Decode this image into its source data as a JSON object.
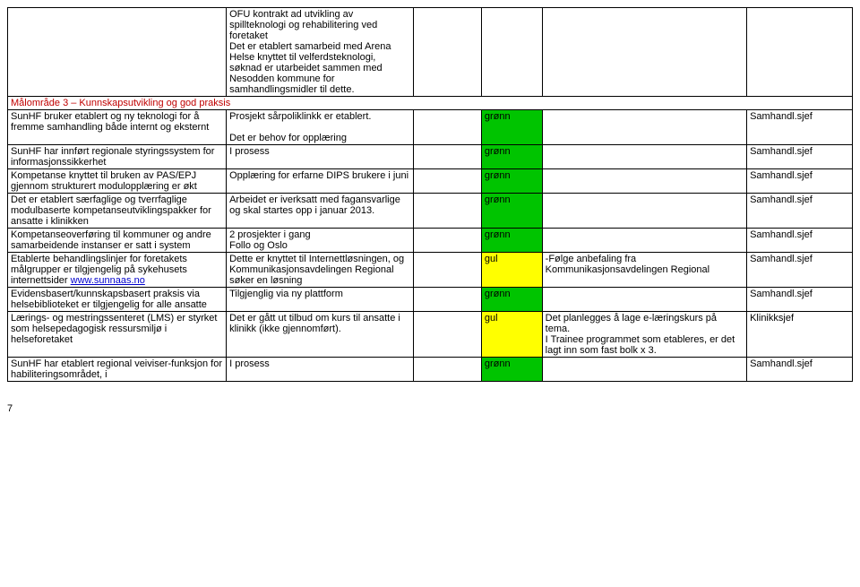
{
  "row0": {
    "colA": "",
    "colB": "OFU kontrakt ad utvikling av spillteknologi og rehabilitering ved foretaket\nDet er etablert samarbeid med Arena Helse knyttet til velferdsteknologi, søknad er utarbeidet sammen med Nesodden kommune for samhandlingsmidler til dette.",
    "colC": "",
    "colD": "",
    "colE": "",
    "colF": ""
  },
  "section_header": "Målområde 3 – Kunnskapsutvikling og god praksis",
  "rows": [
    {
      "a": "SunHF bruker etablert og ny teknologi for å fremme samhandling både internt og eksternt",
      "b": "Prosjekt sårpoliklinkk er etablert.\n\nDet er behov for opplæring",
      "c": "",
      "d_label": "grønn",
      "d_color": "gronn",
      "e": "",
      "f": "Samhandl.sjef"
    },
    {
      "a": "SunHF har innført regionale styringssystem for informasjonssikkerhet",
      "b": "I prosess",
      "c": "",
      "d_label": "grønn",
      "d_color": "gronn",
      "e": "",
      "f": "Samhandl.sjef"
    },
    {
      "a": "Kompetanse knyttet til bruken av PAS/EPJ gjennom strukturert modulopplæring er økt",
      "b": "Opplæring for erfarne DIPS brukere i juni",
      "c": "",
      "d_label": "grønn",
      "d_color": "gronn",
      "e": "",
      "f": "Samhandl.sjef"
    },
    {
      "a": "Det er etablert særfaglige og tverrfaglige modulbaserte kompetanseutviklingspakker for ansatte i klinikken",
      "b": "Arbeidet er iverksatt med fagansvarlige og skal startes opp i januar 2013.",
      "c": "",
      "d_label": "grønn",
      "d_color": "gronn",
      "e": "",
      "f": "Samhandl.sjef"
    },
    {
      "a": "Kompetanseoverføring til kommuner og andre samarbeidende instanser er satt i system",
      "b": "2 prosjekter i gang\nFollo og Oslo",
      "c": "",
      "d_label": "grønn",
      "d_color": "gronn",
      "e": "",
      "f": "Samhandl.sjef"
    },
    {
      "a_pre": "Etablerte behandlingslinjer for foretakets målgrupper er tilgjengelig på sykehusets internettsider ",
      "a_link": "www.sunnaas.no",
      "b": "Dette er knyttet til Internettløsningen, og Kommunikasjonsavdelingen Regional søker en løsning",
      "c": "",
      "d_label": "gul",
      "d_color": "gul",
      "e": "-Følge anbefaling fra Kommunikasjonsavdelingen Regional",
      "f": "Samhandl.sjef"
    },
    {
      "a": "Evidensbasert/kunnskapsbasert praksis via helsebiblioteket er tilgjengelig for alle ansatte",
      "b": "Tilgjenglig via ny plattform",
      "c": "",
      "d_label": "grønn",
      "d_color": "gronn",
      "e": "",
      "f": "Samhandl.sjef"
    },
    {
      "a": "Lærings- og mestringssenteret (LMS) er styrket som helsepedagogisk ressursmiljø i helseforetaket",
      "b": "Det er gått ut tilbud om kurs til ansatte i klinikk (ikke gjennomført).",
      "c": "",
      "d_label": "gul",
      "d_color": "gul",
      "e": "Det planlegges å lage e-læringskurs på tema.\nI Trainee programmet som etableres, er det lagt inn som fast bolk x 3.",
      "f": "Klinikksjef"
    },
    {
      "a": "SunHF har etablert regional veiviser-funksjon for habiliteringsområdet, i",
      "b": "I prosess",
      "c": "",
      "d_label": "grønn",
      "d_color": "gronn",
      "e": "",
      "f": "Samhandl.sjef"
    }
  ],
  "page_number": "7"
}
